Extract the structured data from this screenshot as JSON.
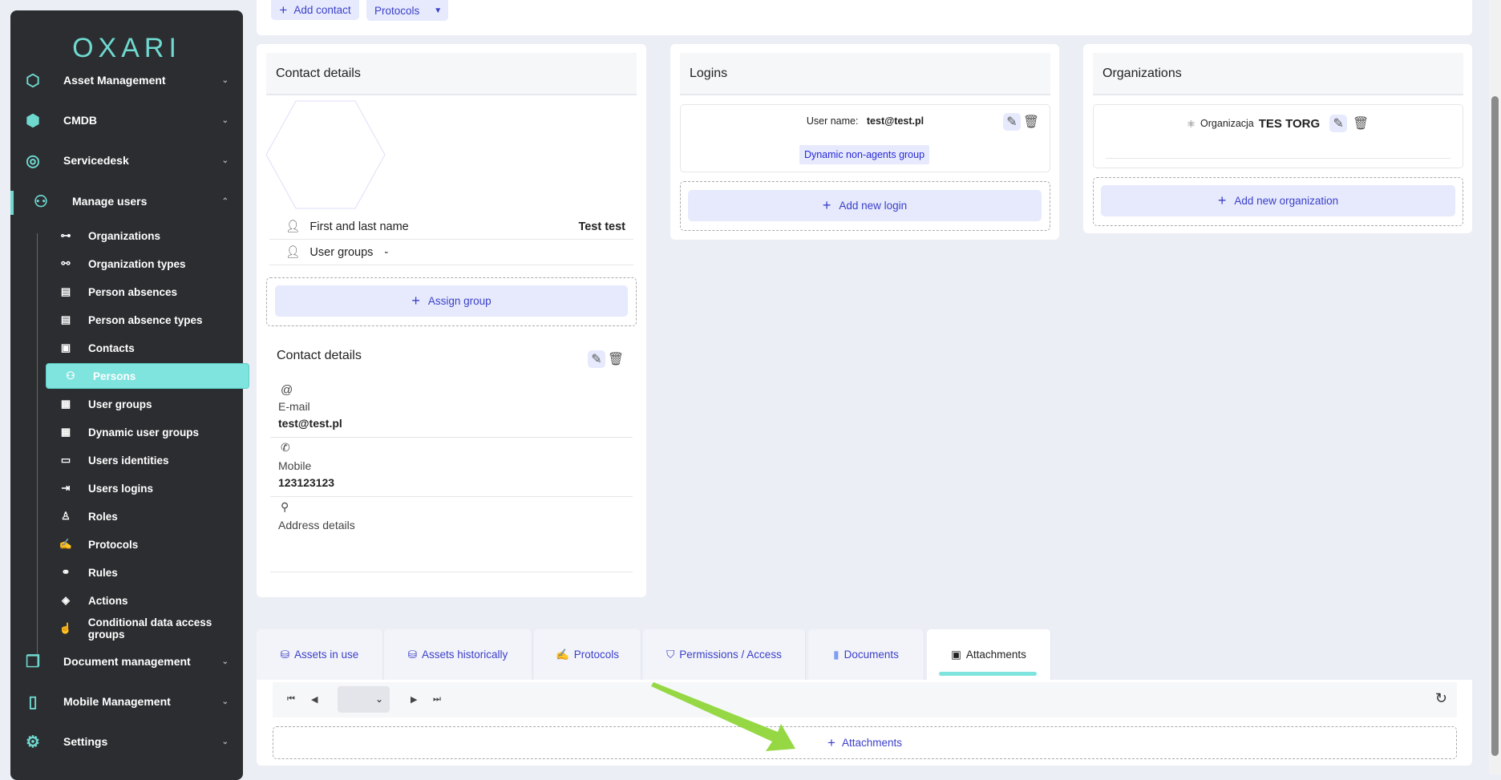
{
  "sidebar": {
    "logo": "OXARI",
    "sections": [
      {
        "label": "Asset Management",
        "icon": "hexagons-icon"
      },
      {
        "label": "CMDB",
        "icon": "cmdb-icon"
      },
      {
        "label": "Servicedesk",
        "icon": "headset-icon"
      },
      {
        "label": "Manage users",
        "icon": "users-tree-icon"
      },
      {
        "label": "Document management",
        "icon": "documents-icon"
      },
      {
        "label": "Mobile Management",
        "icon": "mobile-icon"
      },
      {
        "label": "Settings",
        "icon": "settings-icon"
      }
    ],
    "sub_items": [
      {
        "label": "Organizations",
        "icon": "sitemap-icon"
      },
      {
        "label": "Organization types",
        "icon": "nodes-icon"
      },
      {
        "label": "Person absences",
        "icon": "book-icon"
      },
      {
        "label": "Person absence types",
        "icon": "book-icon"
      },
      {
        "label": "Contacts",
        "icon": "contact-book-icon"
      },
      {
        "label": "Persons",
        "icon": "persons-icon",
        "active": true
      },
      {
        "label": "User groups",
        "icon": "group-icon"
      },
      {
        "label": "Dynamic user groups",
        "icon": "group-icon"
      },
      {
        "label": "Users identities",
        "icon": "id-card-icon"
      },
      {
        "label": "Users logins",
        "icon": "login-icon"
      },
      {
        "label": "Roles",
        "icon": "user-role-icon"
      },
      {
        "label": "Protocols",
        "icon": "protocol-icon"
      },
      {
        "label": "Rules",
        "icon": "rules-icon"
      },
      {
        "label": "Actions",
        "icon": "target-icon"
      },
      {
        "label": "Conditional data access groups",
        "icon": "hand-icon"
      }
    ]
  },
  "toolbar": {
    "add_contact": "Add contact",
    "protocols": "Protocols"
  },
  "contact": {
    "title": "Contact details",
    "name_label": "First and last name",
    "name_value": "Test test",
    "groups_label": "User groups",
    "groups_value": "-",
    "assign_group": "Assign group",
    "details_title": "Contact details",
    "email_label": "E-mail",
    "email_value": "test@test.pl",
    "mobile_label": "Mobile",
    "mobile_value": "123123123",
    "address_label": "Address details"
  },
  "logins": {
    "title": "Logins",
    "user_name_label": "User name:",
    "user_name_value": "test@test.pl",
    "group_badge": "Dynamic non-agents group",
    "add": "Add new login"
  },
  "organizations": {
    "title": "Organizations",
    "org_label": "Organizacja",
    "org_value": "TES TORG",
    "add": "Add new organization"
  },
  "tabs": [
    {
      "label": "Assets in use",
      "icon": "assets-icon"
    },
    {
      "label": "Assets historically",
      "icon": "assets-icon"
    },
    {
      "label": "Protocols",
      "icon": "protocol-icon"
    },
    {
      "label": "Permissions / Access",
      "icon": "shield-icon"
    },
    {
      "label": "Documents",
      "icon": "document-icon"
    },
    {
      "label": "Attachments",
      "icon": "attachment-icon",
      "active": true
    }
  ],
  "attachments": {
    "add": "Attachments",
    "page_select": ""
  },
  "colors": {
    "accent": "#7fe3de",
    "sidebar": "#2b2d30",
    "button_bg": "#e6eafc",
    "button_text": "#3b3fc9",
    "arrow": "#8fd63a"
  }
}
